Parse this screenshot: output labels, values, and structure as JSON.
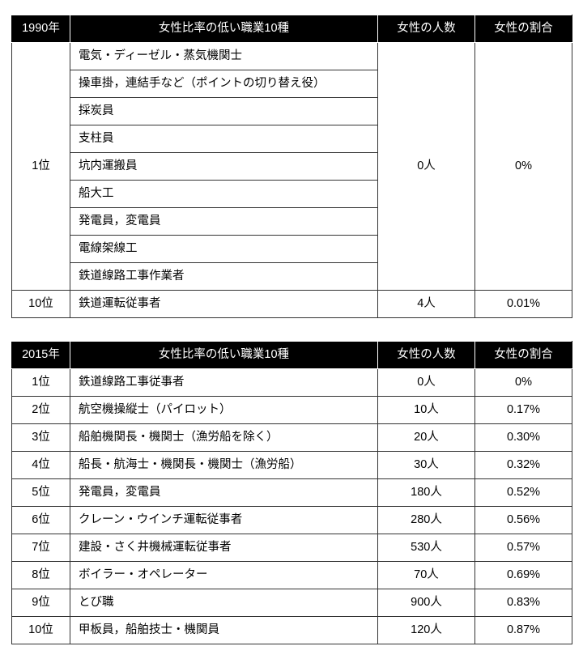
{
  "colors": {
    "header_bg": "#000000",
    "header_fg": "#ffffff",
    "border": "#333333",
    "page_bg": "#ffffff",
    "text": "#000000"
  },
  "typography": {
    "font_family": "Hiragino Sans / Yu Gothic / Meiryo",
    "cell_fontsize_pt": 11,
    "header_fontsize_pt": 11
  },
  "table1": {
    "header": {
      "year": "1990年",
      "title": "女性比率の低い職業10種",
      "count": "女性の人数",
      "ratio": "女性の割合"
    },
    "merged_group": {
      "rank": "1位",
      "count": "0人",
      "ratio": "0%",
      "rowspan": 9,
      "occupations": [
        "電気・ディーゼル・蒸気機関士",
        "操車掛，連結手など（ポイントの切り替え役）",
        "採炭員",
        "支柱員",
        "坑内運搬員",
        "船大工",
        "発電員，変電員",
        "電線架線工",
        "鉄道線路工事作業者"
      ]
    },
    "last_row": {
      "rank": "10位",
      "occupation": "鉄道運転従事者",
      "count": "4人",
      "ratio": "0.01%"
    }
  },
  "table2": {
    "header": {
      "year": "2015年",
      "title": "女性比率の低い職業10種",
      "count": "女性の人数",
      "ratio": "女性の割合"
    },
    "rows": [
      {
        "rank": "1位",
        "occupation": "鉄道線路工事従事者",
        "count": "0人",
        "ratio": "0%"
      },
      {
        "rank": "2位",
        "occupation": "航空機操縦士（パイロット）",
        "count": "10人",
        "ratio": "0.17%"
      },
      {
        "rank": "3位",
        "occupation": "船舶機関長・機関士（漁労船を除く）",
        "count": "20人",
        "ratio": "0.30%"
      },
      {
        "rank": "4位",
        "occupation": "船長・航海士・機関長・機関士（漁労船）",
        "count": "30人",
        "ratio": "0.32%"
      },
      {
        "rank": "5位",
        "occupation": "発電員，変電員",
        "count": "180人",
        "ratio": "0.52%"
      },
      {
        "rank": "6位",
        "occupation": "クレーン・ウインチ運転従事者",
        "count": "280人",
        "ratio": "0.56%"
      },
      {
        "rank": "7位",
        "occupation": "建設・さく井機械運転従事者",
        "count": "530人",
        "ratio": "0.57%"
      },
      {
        "rank": "8位",
        "occupation": "ボイラー・オペレーター",
        "count": "70人",
        "ratio": "0.69%"
      },
      {
        "rank": "9位",
        "occupation": "とび職",
        "count": "900人",
        "ratio": "0.83%"
      },
      {
        "rank": "10位",
        "occupation": "甲板員，船舶技士・機関員",
        "count": "120人",
        "ratio": "0.87%"
      }
    ]
  }
}
